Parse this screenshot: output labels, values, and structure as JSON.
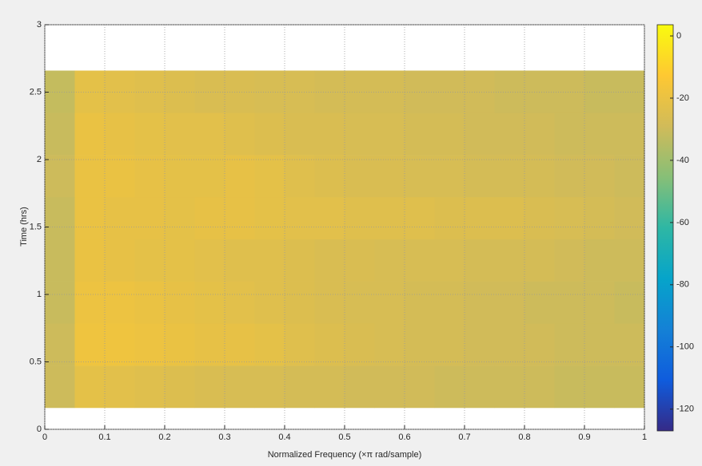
{
  "chart_data": {
    "type": "heatmap",
    "xlabel": "Normalized Frequency  (×π rad/sample)",
    "ylabel": "Time (hrs)",
    "x_bins": [
      0,
      0.05,
      0.1,
      0.15,
      0.2,
      0.25,
      0.3,
      0.35,
      0.4,
      0.45,
      0.5,
      0.55,
      0.6,
      0.65,
      0.7,
      0.75,
      0.8,
      0.85,
      0.9,
      0.95,
      1
    ],
    "y_bins": [
      0.16,
      0.4725,
      0.785,
      1.0975,
      1.41,
      1.7225,
      2.035,
      2.3475,
      2.66
    ],
    "values": [
      [
        -30,
        -22,
        -23,
        -24,
        -25,
        -26,
        -27,
        -27,
        -28,
        -28,
        -29,
        -29,
        -29,
        -30,
        -30,
        -30,
        -30,
        -31,
        -31,
        -31
      ],
      [
        -30,
        -18,
        -18,
        -19,
        -20,
        -21,
        -21,
        -22,
        -24,
        -25,
        -26,
        -27,
        -28,
        -28,
        -29,
        -29,
        -29,
        -30,
        -30,
        -30
      ],
      [
        -31,
        -19,
        -19,
        -20,
        -21,
        -22,
        -23,
        -24,
        -25,
        -26,
        -27,
        -27,
        -28,
        -28,
        -29,
        -29,
        -30,
        -30,
        -30,
        -31
      ],
      [
        -31,
        -20,
        -21,
        -22,
        -22,
        -23,
        -24,
        -24,
        -25,
        -26,
        -26,
        -27,
        -27,
        -27,
        -28,
        -28,
        -28,
        -29,
        -30,
        -30
      ],
      [
        -31,
        -20,
        -21,
        -21,
        -22,
        -21,
        -21,
        -22,
        -23,
        -23,
        -24,
        -24,
        -24,
        -25,
        -25,
        -25,
        -26,
        -27,
        -28,
        -29
      ],
      [
        -30,
        -20,
        -20,
        -21,
        -22,
        -22,
        -21,
        -22,
        -24,
        -25,
        -26,
        -26,
        -27,
        -27,
        -28,
        -28,
        -28,
        -29,
        -29,
        -30
      ],
      [
        -31,
        -20,
        -21,
        -22,
        -23,
        -23,
        -24,
        -25,
        -26,
        -26,
        -27,
        -27,
        -28,
        -28,
        -29,
        -29,
        -29,
        -30,
        -30,
        -30
      ],
      [
        -32,
        -22,
        -23,
        -24,
        -25,
        -26,
        -26,
        -27,
        -27,
        -28,
        -28,
        -28,
        -29,
        -29,
        -29,
        -30,
        -30,
        -30,
        -31,
        -31
      ]
    ],
    "xlim": [
      0,
      1
    ],
    "xticks": [
      0,
      0.1,
      0.2,
      0.3,
      0.4,
      0.5,
      0.6,
      0.7,
      0.8,
      0.9,
      1
    ],
    "ylim": [
      0,
      3
    ],
    "yticks": [
      0,
      0.5,
      1,
      1.5,
      2,
      2.5,
      3
    ],
    "clim": [
      -127,
      3.6
    ],
    "cticks": [
      0,
      -20,
      -40,
      -60,
      -80,
      -100,
      -120
    ],
    "colormap": [
      "#352a87",
      "#0f5cdd",
      "#1481d6",
      "#06a4ca",
      "#2eb7a4",
      "#87bf77",
      "#d1bb59",
      "#fec832",
      "#f9fb0e"
    ],
    "grid": true
  }
}
